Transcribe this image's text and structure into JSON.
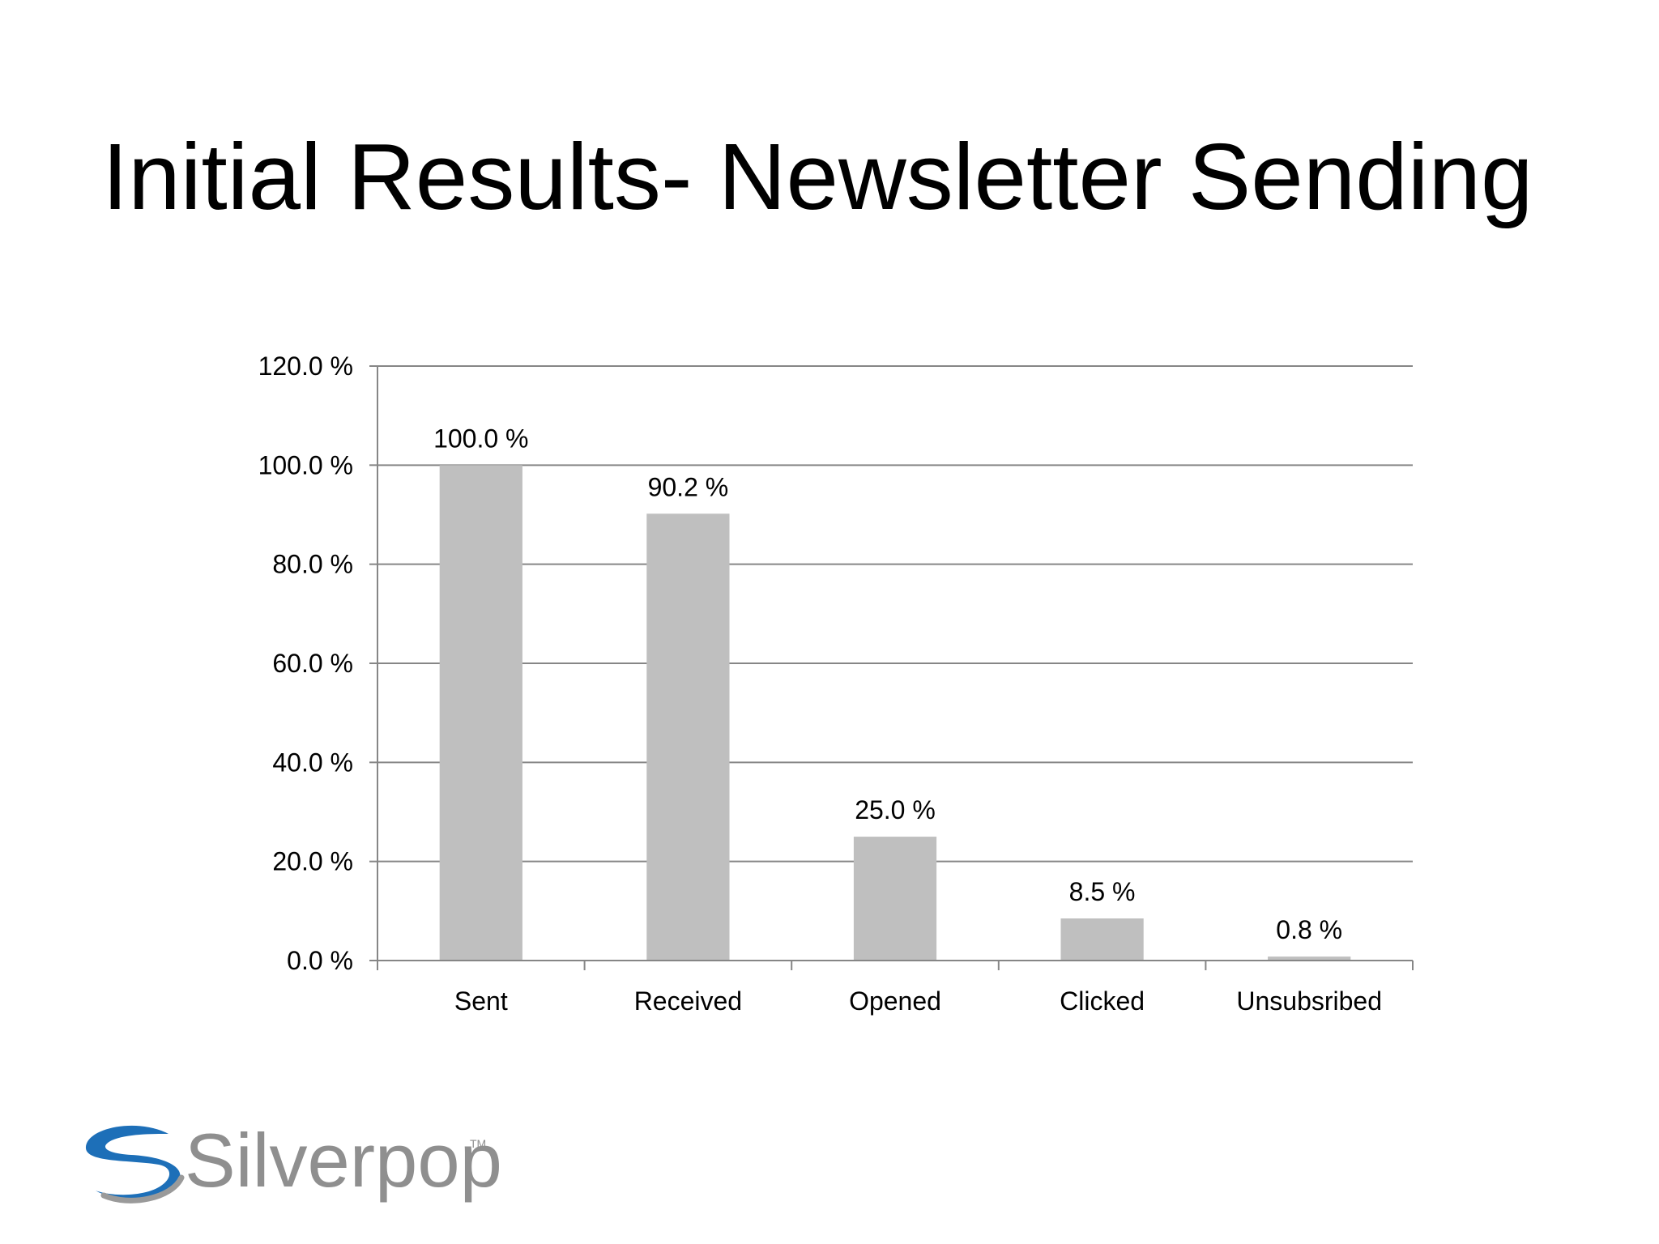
{
  "slide": {
    "title": "Initial Results- Newsletter Sending"
  },
  "logo": {
    "text": "Silverpop",
    "tm": "TM",
    "colors": {
      "blue": "#1d6fb8",
      "gray": "#8f8f8f"
    }
  },
  "chart_data": {
    "type": "bar",
    "categories": [
      "Sent",
      "Received",
      "Opened",
      "Clicked",
      "Unsubsribed"
    ],
    "values": [
      100.0,
      90.2,
      25.0,
      8.5,
      0.8
    ],
    "data_labels": [
      "100.0 %",
      "90.2 %",
      "25.0 %",
      "8.5 %",
      "0.8 %"
    ],
    "yticks": [
      0,
      20,
      40,
      60,
      80,
      100,
      120
    ],
    "ytick_labels": [
      "0.0 %",
      "20.0 %",
      "40.0 %",
      "60.0 %",
      "80.0 %",
      "100.0 %",
      "120.0 %"
    ],
    "ylim": [
      0,
      120
    ],
    "grid": true,
    "legend": "none",
    "bar_color": "#bfbfbf",
    "grid_color": "#868686"
  }
}
